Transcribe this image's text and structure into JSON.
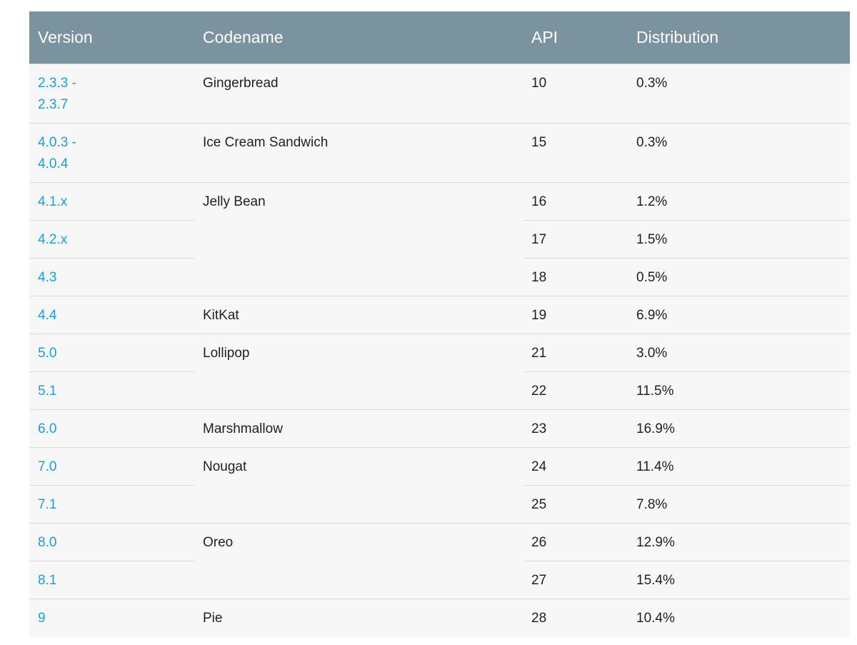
{
  "table": {
    "headers": {
      "version": "Version",
      "codename": "Codename",
      "api": "API",
      "distribution": "Distribution"
    },
    "rows": [
      {
        "version": "2.3.3 -\n2.3.7",
        "codename": "Gingerbread",
        "api": "10",
        "distribution": "0.3%"
      },
      {
        "version": "4.0.3 -\n4.0.4",
        "codename": "Ice Cream Sandwich",
        "api": "15",
        "distribution": "0.3%"
      },
      {
        "version": "4.1.x",
        "codename": "Jelly Bean",
        "api": "16",
        "distribution": "1.2%"
      },
      {
        "version": "4.2.x",
        "codename": "",
        "api": "17",
        "distribution": "1.5%"
      },
      {
        "version": "4.3",
        "codename": "",
        "api": "18",
        "distribution": "0.5%"
      },
      {
        "version": "4.4",
        "codename": "KitKat",
        "api": "19",
        "distribution": "6.9%"
      },
      {
        "version": "5.0",
        "codename": "Lollipop",
        "api": "21",
        "distribution": "3.0%"
      },
      {
        "version": "5.1",
        "codename": "",
        "api": "22",
        "distribution": "11.5%"
      },
      {
        "version": "6.0",
        "codename": "Marshmallow",
        "api": "23",
        "distribution": "16.9%"
      },
      {
        "version": "7.0",
        "codename": "Nougat",
        "api": "24",
        "distribution": "11.4%"
      },
      {
        "version": "7.1",
        "codename": "",
        "api": "25",
        "distribution": "7.8%"
      },
      {
        "version": "8.0",
        "codename": "Oreo",
        "api": "26",
        "distribution": "12.9%"
      },
      {
        "version": "8.1",
        "codename": "",
        "api": "27",
        "distribution": "15.4%"
      },
      {
        "version": "9",
        "codename": "Pie",
        "api": "28",
        "distribution": "10.4%"
      }
    ]
  },
  "colors": {
    "header_bg": "#7b939e",
    "header_text": "#ffffff",
    "link": "#1a9fd6",
    "row_bg": "#f7f7f7",
    "divider": "#dcdcdc"
  }
}
